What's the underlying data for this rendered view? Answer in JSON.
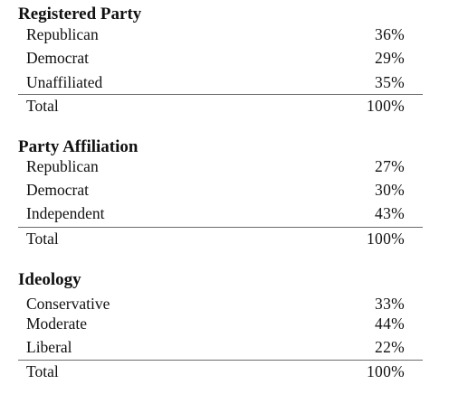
{
  "tables": [
    {
      "title": "Registered Party",
      "rows": [
        {
          "label": "Republican",
          "value": "36%"
        },
        {
          "label": "Democrat",
          "value": "29%"
        },
        {
          "label": "Unaffiliated",
          "value": "35%"
        }
      ],
      "total": {
        "label": "Total",
        "value": "100%"
      }
    },
    {
      "title": "Party Affiliation",
      "rows": [
        {
          "label": "Republican",
          "value": "27%"
        },
        {
          "label": "Democrat",
          "value": "30%"
        },
        {
          "label": "Independent",
          "value": "43%"
        }
      ],
      "total": {
        "label": "Total",
        "value": "100%"
      }
    },
    {
      "title": "Ideology",
      "rows": [
        {
          "label": "Conservative",
          "value": "33%"
        },
        {
          "label": "Moderate",
          "value": "44%"
        },
        {
          "label": "Liberal",
          "value": "22%"
        }
      ],
      "total": {
        "label": "Total",
        "value": "100%"
      }
    }
  ]
}
